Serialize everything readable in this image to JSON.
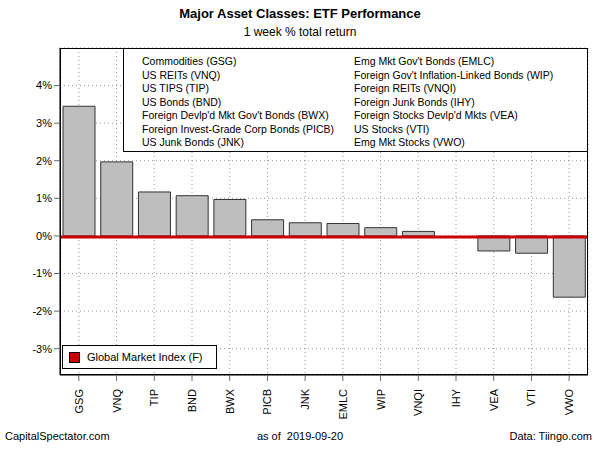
{
  "chart_data": {
    "type": "bar",
    "title": "Major Asset Classes: ETF Performance",
    "subtitle": "1 week % total return",
    "categories": [
      "GSG",
      "VNQ",
      "TIP",
      "BND",
      "BWX",
      "PICB",
      "JNK",
      "EMLC",
      "WIP",
      "VNQI",
      "IHY",
      "VEA",
      "VTI",
      "VWO"
    ],
    "category_names": [
      "Commodities (GSG)",
      "US REITs (VNQ)",
      "US TIPS (TIP)",
      "US Bonds (BND)",
      "Foreign Devlp'd Mkt Gov't Bonds (BWX)",
      "Foreign Invest-Grade Corp Bonds (PICB)",
      "US Junk Bonds (JNK)",
      "Emg Mkt Gov't Bonds (EMLC)",
      "Foreign Gov't Inflation-Linked Bonds (WIP)",
      "Foreign REITs (VNQI)",
      "Foreign Junk Bonds (IHY)",
      "Foreign Stocks Devlp'd Mkts (VEA)",
      "US Stocks (VTI)",
      "Emg Mkt Stocks (VWO)"
    ],
    "values": [
      3.45,
      1.97,
      1.17,
      1.07,
      0.97,
      0.43,
      0.35,
      0.33,
      0.22,
      0.12,
      0,
      -0.4,
      -0.46,
      -1.63
    ],
    "color": "#bebebe",
    "ylim": [
      -3.7,
      5.0
    ],
    "yticks": [
      {
        "value": -3,
        "label": "-3%"
      },
      {
        "value": -2,
        "label": "-2%"
      },
      {
        "value": -1,
        "label": "-1%"
      },
      {
        "value": 0,
        "label": "0%"
      },
      {
        "value": 1,
        "label": "1%"
      },
      {
        "value": 2,
        "label": "2%"
      },
      {
        "value": 3,
        "label": "3%"
      },
      {
        "value": 4,
        "label": "4%"
      }
    ],
    "grid": true,
    "reference_line": {
      "name": "Global Market Index (F)",
      "value": -0.03,
      "color": "#cc0000"
    },
    "legend": "bottom left",
    "annotations": [
      "CapitalSpectator.com",
      "as of  2019-09-20",
      "Data: Tiingo.com"
    ]
  }
}
